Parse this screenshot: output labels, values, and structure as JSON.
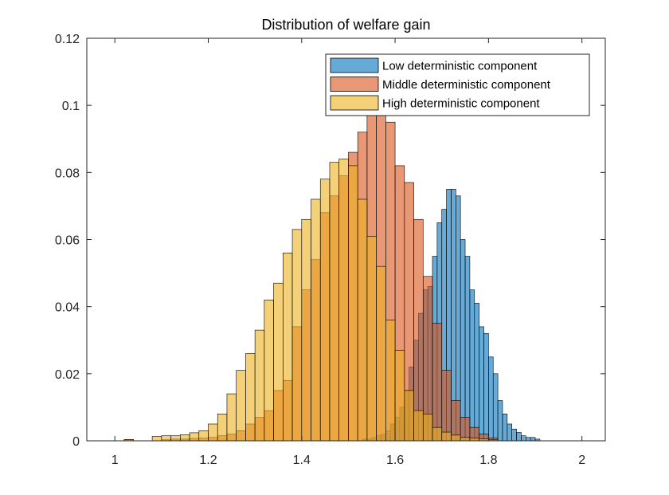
{
  "chart_data": {
    "type": "bar",
    "title": "Distribution of welfare gain",
    "xlabel": "",
    "ylabel": "",
    "xlim": [
      0.94,
      2.05
    ],
    "ylim": [
      0,
      0.12
    ],
    "x_ticks": [
      1,
      1.2,
      1.4,
      1.6,
      1.8,
      2
    ],
    "x_tick_labels": [
      "1",
      "1.2",
      "1.4",
      "1.6",
      "1.8",
      "2"
    ],
    "y_ticks": [
      0,
      0.02,
      0.04,
      0.06,
      0.08,
      0.1,
      0.12
    ],
    "y_tick_labels": [
      "0",
      "0.02",
      "0.04",
      "0.06",
      "0.08",
      "0.1",
      "0.12"
    ],
    "grid": false,
    "legend_position": "top-right",
    "series": [
      {
        "name": "Low deterministic component",
        "color": "#0072BD",
        "bin_width": 0.01,
        "x": [
          1.535,
          1.545,
          1.555,
          1.565,
          1.575,
          1.585,
          1.595,
          1.605,
          1.615,
          1.625,
          1.635,
          1.645,
          1.655,
          1.665,
          1.675,
          1.685,
          1.695,
          1.705,
          1.715,
          1.725,
          1.735,
          1.745,
          1.755,
          1.765,
          1.775,
          1.785,
          1.795,
          1.805,
          1.815,
          1.825,
          1.835,
          1.845,
          1.855,
          1.865,
          1.875,
          1.885,
          1.895,
          1.905
        ],
        "values": [
          0.0005,
          0.0005,
          0.001,
          0.0015,
          0.002,
          0.003,
          0.005,
          0.007,
          0.01,
          0.015,
          0.022,
          0.03,
          0.038,
          0.045,
          0.046,
          0.055,
          0.065,
          0.069,
          0.075,
          0.075,
          0.073,
          0.06,
          0.055,
          0.045,
          0.041,
          0.034,
          0.032,
          0.025,
          0.02,
          0.012,
          0.008,
          0.005,
          0.0035,
          0.0025,
          0.0015,
          0.001,
          0.001,
          0.0005
        ]
      },
      {
        "name": "Middle deterministic component",
        "color": "#D95319",
        "bin_width": 0.02,
        "x": [
          1.03,
          1.11,
          1.13,
          1.15,
          1.17,
          1.19,
          1.21,
          1.23,
          1.25,
          1.27,
          1.29,
          1.31,
          1.33,
          1.35,
          1.37,
          1.39,
          1.41,
          1.43,
          1.45,
          1.47,
          1.49,
          1.51,
          1.53,
          1.55,
          1.57,
          1.59,
          1.61,
          1.63,
          1.65,
          1.67,
          1.69,
          1.71,
          1.73,
          1.75,
          1.77,
          1.79,
          1.81
        ],
        "values": [
          0.0003,
          0.0003,
          0.0005,
          0.0005,
          0.0007,
          0.0008,
          0.001,
          0.0015,
          0.002,
          0.003,
          0.005,
          0.007,
          0.009,
          0.015,
          0.018,
          0.034,
          0.045,
          0.054,
          0.068,
          0.073,
          0.079,
          0.086,
          0.092,
          0.097,
          0.098,
          0.095,
          0.082,
          0.077,
          0.066,
          0.049,
          0.035,
          0.021,
          0.012,
          0.007,
          0.004,
          0.002,
          0.0008
        ]
      },
      {
        "name": "High deterministic component",
        "color": "#EDB120",
        "bin_width": 0.02,
        "x": [
          1.03,
          1.09,
          1.11,
          1.13,
          1.15,
          1.17,
          1.19,
          1.21,
          1.23,
          1.25,
          1.27,
          1.29,
          1.31,
          1.33,
          1.35,
          1.37,
          1.39,
          1.41,
          1.43,
          1.45,
          1.47,
          1.49,
          1.51,
          1.53,
          1.55,
          1.57,
          1.59,
          1.61,
          1.63,
          1.65,
          1.67,
          1.69,
          1.71,
          1.73,
          1.75,
          1.77,
          1.79,
          1.81
        ],
        "values": [
          0.0004,
          0.0013,
          0.0015,
          0.0015,
          0.0018,
          0.0024,
          0.003,
          0.005,
          0.008,
          0.014,
          0.021,
          0.026,
          0.033,
          0.042,
          0.047,
          0.056,
          0.063,
          0.066,
          0.072,
          0.078,
          0.083,
          0.084,
          0.082,
          0.072,
          0.061,
          0.052,
          0.036,
          0.027,
          0.015,
          0.009,
          0.008,
          0.004,
          0.0026,
          0.0017,
          0.001,
          0.0008,
          0.0006,
          0.0003
        ]
      }
    ]
  }
}
